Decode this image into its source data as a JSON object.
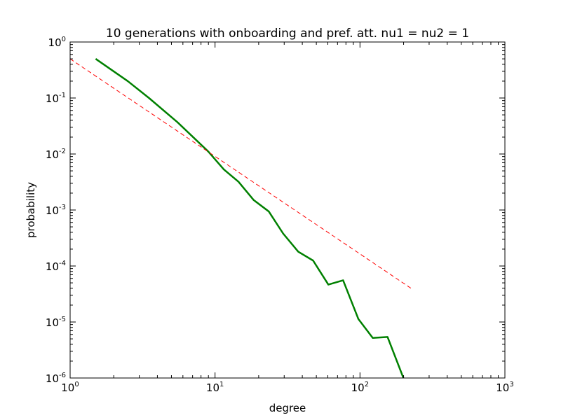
{
  "chart_data": {
    "type": "line",
    "title": "10 generations with onboarding and pref. att. nu1 = nu2 = 1",
    "xlabel": "degree",
    "ylabel": "probability",
    "xscale": "log",
    "yscale": "log",
    "xlim": [
      1,
      1000
    ],
    "ylim": [
      1e-06,
      1
    ],
    "grid": false,
    "x_ticks": [
      {
        "value": 1,
        "base": "10",
        "exp": "0"
      },
      {
        "value": 10,
        "base": "10",
        "exp": "1"
      },
      {
        "value": 100,
        "base": "10",
        "exp": "2"
      },
      {
        "value": 1000,
        "base": "10",
        "exp": "3"
      }
    ],
    "y_ticks": [
      {
        "value": 1,
        "base": "10",
        "exp": "0"
      },
      {
        "value": 0.1,
        "base": "10",
        "exp": "-1"
      },
      {
        "value": 0.01,
        "base": "10",
        "exp": "-2"
      },
      {
        "value": 0.001,
        "base": "10",
        "exp": "-3"
      },
      {
        "value": 0.0001,
        "base": "10",
        "exp": "-4"
      },
      {
        "value": 1e-05,
        "base": "10",
        "exp": "-5"
      },
      {
        "value": 1e-06,
        "base": "10",
        "exp": "-6"
      }
    ],
    "series": [
      {
        "color": "#008000",
        "style": "solid",
        "x": [
          1.5,
          2.5,
          3.5,
          5.5,
          9.0,
          11.5,
          14.5,
          18.5,
          23.5,
          29.5,
          37.5,
          47.5,
          60.5,
          76.5,
          97.5,
          122.5,
          155.0,
          200.0
        ],
        "y": [
          0.5,
          0.2,
          0.1,
          0.037,
          0.011,
          0.0053,
          0.0032,
          0.0015,
          0.00094,
          0.00038,
          0.00018,
          0.000125,
          4.65e-05,
          5.55e-05,
          1.13e-05,
          5.2e-06,
          5.4e-06,
          9.8e-07
        ]
      },
      {
        "color": "#ff0000",
        "style": "dashed",
        "x": [
          1,
          225
        ],
        "y": [
          0.5,
          4e-05
        ]
      }
    ]
  }
}
